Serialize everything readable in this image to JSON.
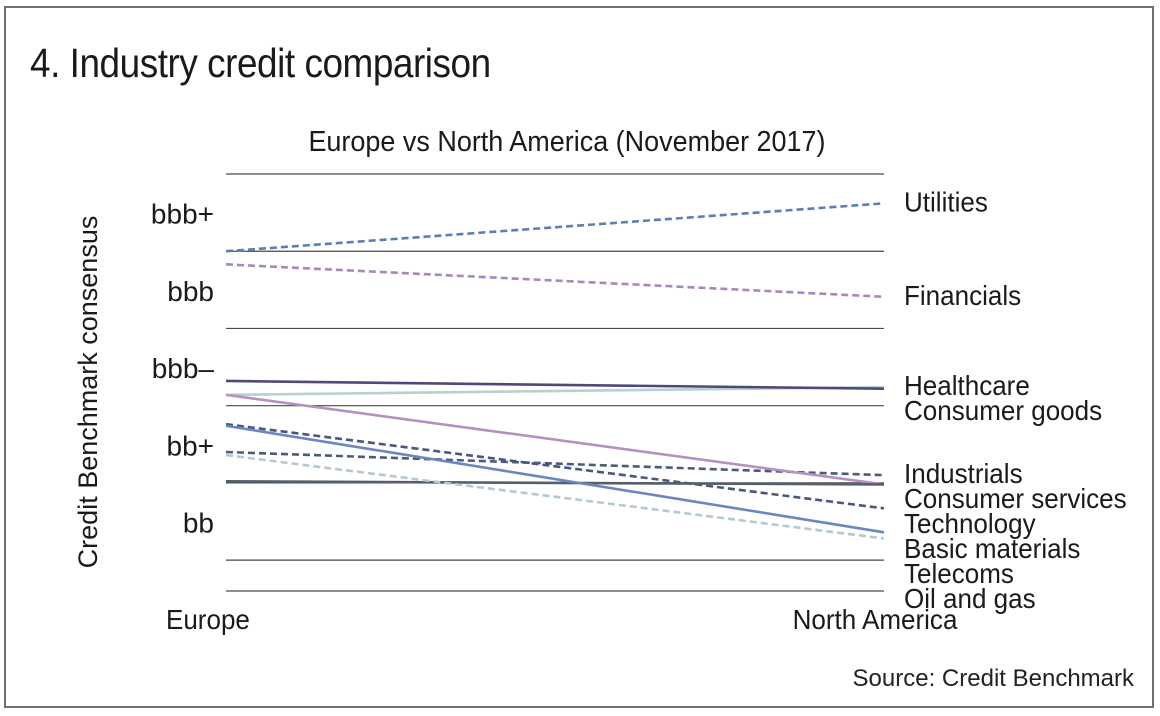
{
  "title": "4. Industry credit comparison",
  "source": "Source: Credit Benchmark",
  "chart_data": {
    "type": "line",
    "subtitle": "Europe vs North America (November 2017)",
    "ylabel": "Credit Benchmark consensus",
    "categories": [
      "Europe",
      "North America"
    ],
    "rating_bands": [
      {
        "label": "bbb+",
        "range": [
          13,
          14
        ]
      },
      {
        "label": "bbb",
        "range": [
          12,
          13
        ]
      },
      {
        "label": "bbb–",
        "range": [
          11,
          12
        ]
      },
      {
        "label": "bb+",
        "range": [
          10,
          11
        ]
      },
      {
        "label": "bb",
        "range": [
          9,
          10
        ]
      }
    ],
    "ylim": [
      8.6,
      14.0
    ],
    "series": [
      {
        "name": "Utilities",
        "values": [
          13.0,
          13.62
        ],
        "color": "#5a7fb4",
        "dash": true
      },
      {
        "name": "Financials",
        "values": [
          12.83,
          12.41
        ],
        "color": "#a887bd",
        "dash": true
      },
      {
        "name": "Healthcare",
        "values": [
          11.14,
          11.24
        ],
        "color": "#b8cfd6",
        "dash": false
      },
      {
        "name": "Consumer goods",
        "values": [
          11.32,
          11.22
        ],
        "color": "#4d4a78",
        "dash": false
      },
      {
        "name": "Industrials",
        "values": [
          10.4,
          10.1
        ],
        "color": "#4b5b78",
        "dash": true
      },
      {
        "name": "Consumer services",
        "values": [
          11.14,
          9.98
        ],
        "color": "#b790c2",
        "dash": false
      },
      {
        "name": "Basic materials",
        "values": [
          10.76,
          9.67
        ],
        "color": "#4a5584",
        "dash": true
      },
      {
        "name": "Technology",
        "values": [
          10.02,
          9.98
        ],
        "color": "#555f6b",
        "dash": false
      },
      {
        "name": "Telecoms",
        "values": [
          10.74,
          9.36
        ],
        "color": "#6b87c0",
        "dash": false
      },
      {
        "name": "Oil and gas",
        "values": [
          10.36,
          9.28
        ],
        "color": "#b5c9d2",
        "dash": true
      }
    ]
  }
}
